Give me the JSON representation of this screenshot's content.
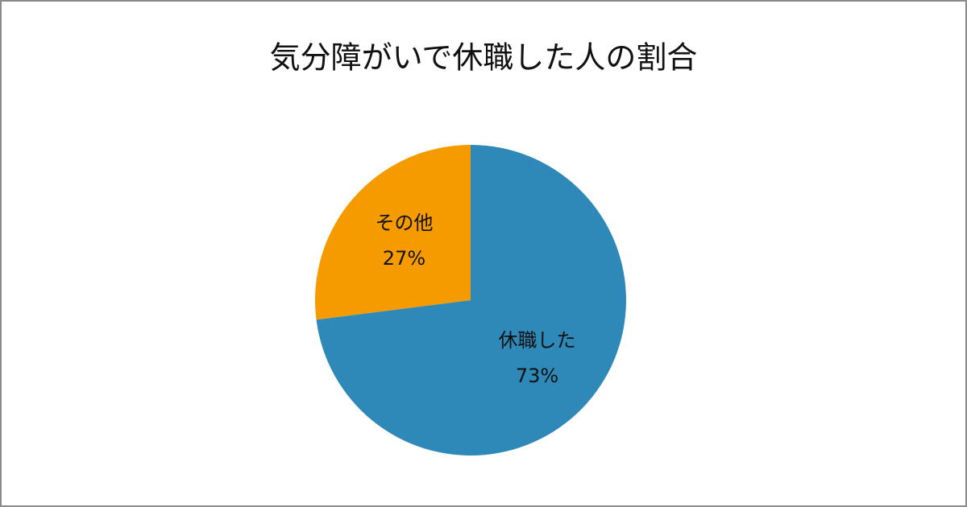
{
  "chart_data": {
    "type": "pie",
    "title": "気分障がいで休職した人の割合",
    "categories": [
      "休職した",
      "その他"
    ],
    "values": [
      73,
      27
    ],
    "value_labels": [
      "73%",
      "27%"
    ],
    "colors": [
      "#2e89b8",
      "#f59b00"
    ]
  }
}
